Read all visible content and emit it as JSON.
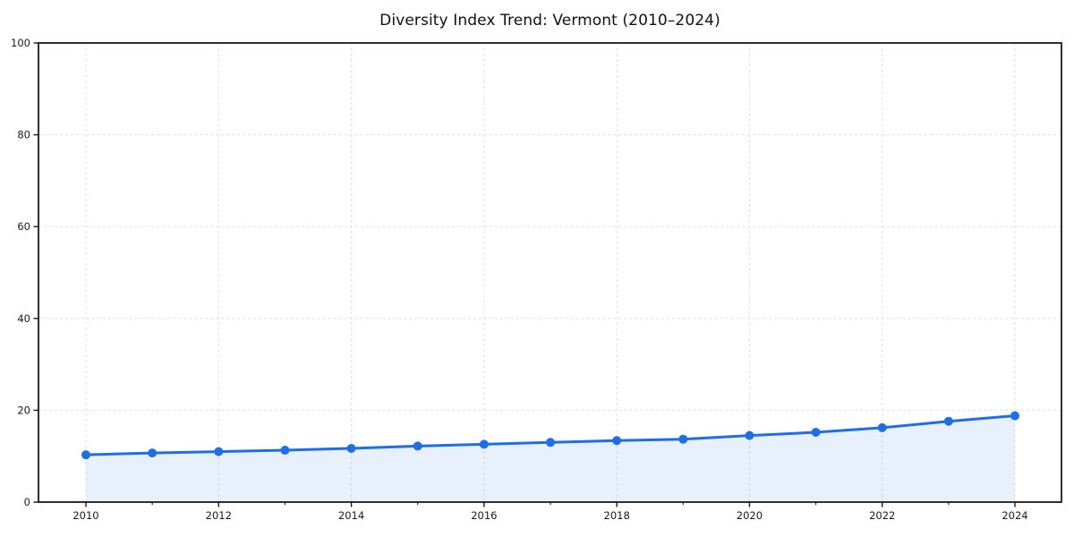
{
  "chart_data": {
    "type": "area",
    "title": "Diversity Index Trend: Vermont (2010–2024)",
    "xlabel": "",
    "ylabel": "",
    "x": [
      2010,
      2011,
      2012,
      2013,
      2014,
      2015,
      2016,
      2017,
      2018,
      2019,
      2020,
      2021,
      2022,
      2023,
      2024
    ],
    "series": [
      {
        "name": "Diversity Index",
        "values": [
          10.3,
          10.7,
          11.0,
          11.3,
          11.7,
          12.2,
          12.6,
          13.0,
          13.4,
          13.7,
          14.5,
          15.2,
          16.2,
          17.6,
          18.8
        ]
      }
    ],
    "ylim": [
      0,
      100
    ],
    "xticks": [
      2010,
      2012,
      2014,
      2016,
      2018,
      2020,
      2022,
      2024
    ],
    "yticks": [
      0,
      20,
      40,
      60,
      80,
      100
    ],
    "minor_xticks": [
      2011,
      2013,
      2015,
      2017,
      2019,
      2021,
      2023
    ],
    "grid": "dashed",
    "legend": "none",
    "colors": {
      "line": "#1f6ee5",
      "marker": "#1f6ee5",
      "area_fill": "rgba(31,110,229,0.10)",
      "grid": "#e0e0e0",
      "spine": "#1a1a1a",
      "tick_label": "#1a1a1a",
      "background": "#ffffff"
    }
  }
}
